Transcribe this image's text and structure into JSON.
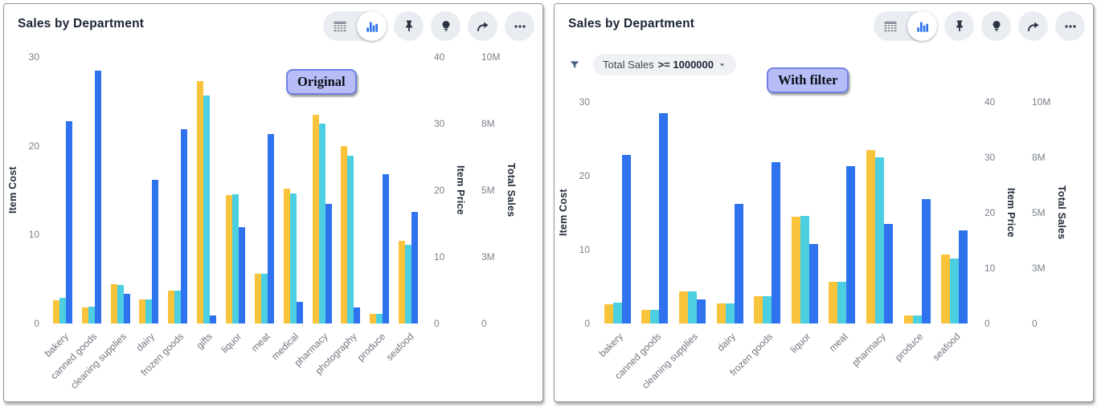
{
  "colors": {
    "bar_item_cost": "#F9C33C",
    "bar_item_price": "#4CCFE0",
    "bar_total_sales": "#2E72EE",
    "badge_bg": "#B7BEF7",
    "badge_border": "#7280E4",
    "toolbar_circle_bg": "#E9EDF2",
    "icon_dark": "#2B3442",
    "icon_gray": "#8D949F",
    "accent_blue": "#2E72EE"
  },
  "panels": [
    {
      "title": "Sales by Department",
      "annotation": "Original",
      "toolbar": {
        "icons": [
          "table-icon",
          "bar-chart-icon",
          "pin-icon",
          "lightbulb-icon",
          "share-arrow-icon",
          "more-options-icon"
        ],
        "active_view": "chart"
      }
    },
    {
      "title": "Sales by Department",
      "annotation": "With filter",
      "filter": {
        "icon": "filter-funnel-icon",
        "field": "Total Sales",
        "condition": ">= 1000000",
        "dropdown_icon": "caret-down-icon"
      },
      "toolbar": {
        "icons": [
          "table-icon",
          "bar-chart-icon",
          "pin-icon",
          "lightbulb-icon",
          "share-arrow-icon",
          "more-options-icon"
        ],
        "active_view": "chart"
      }
    }
  ],
  "chart_data": [
    {
      "type": "bar",
      "title": "Sales by Department",
      "annotation": "Original",
      "grid": false,
      "legend": "none",
      "categories": [
        "bakery",
        "canned goods",
        "cleaning supplies",
        "dairy",
        "frozen goods",
        "gifts",
        "liquor",
        "meat",
        "medical",
        "pharmacy",
        "photography",
        "produce",
        "seafood"
      ],
      "series": [
        {
          "name": "Item Cost",
          "axis": "left",
          "color": "#F9C33C",
          "axis_max": 30,
          "values": [
            2.6,
            1.8,
            4.4,
            2.7,
            3.7,
            27.3,
            14.5,
            5.6,
            15.2,
            23.5,
            20.0,
            1.1,
            9.3
          ]
        },
        {
          "name": "Item Price",
          "axis": "right-1",
          "color": "#4CCFE0",
          "axis_max": 40,
          "values": [
            3.8,
            2.5,
            5.8,
            3.6,
            4.9,
            34.2,
            19.4,
            7.5,
            19.5,
            30.0,
            25.2,
            1.4,
            11.8
          ]
        },
        {
          "name": "Total Sales",
          "axis": "right-2",
          "color": "#2E72EE",
          "axis_max": 10000000,
          "values": [
            7600000,
            9500000,
            1100000,
            5400000,
            7300000,
            300000,
            3600000,
            7100000,
            800000,
            4500000,
            600000,
            5600000,
            4200000
          ]
        }
      ],
      "axes": {
        "left": {
          "title": "Item Cost",
          "ticks": [
            "0",
            "10",
            "20",
            "30"
          ],
          "range": [
            0,
            30
          ]
        },
        "right1": {
          "title": "Item Price",
          "ticks": [
            "0",
            "10",
            "20",
            "30",
            "40"
          ],
          "range": [
            0,
            40
          ]
        },
        "right2": {
          "title": "Total Sales",
          "ticks": [
            "0",
            "3M",
            "5M",
            "8M",
            "10M"
          ],
          "range": [
            0,
            10000000
          ]
        }
      }
    },
    {
      "type": "bar",
      "title": "Sales by Department",
      "annotation": "With filter",
      "filter": "Total Sales >= 1000000",
      "grid": false,
      "legend": "none",
      "categories": [
        "bakery",
        "canned goods",
        "cleaning supplies",
        "dairy",
        "frozen goods",
        "liquor",
        "meat",
        "pharmacy",
        "produce",
        "seafood"
      ],
      "series": [
        {
          "name": "Item Cost",
          "axis": "left",
          "color": "#F9C33C",
          "axis_max": 30,
          "values": [
            2.6,
            1.8,
            4.4,
            2.7,
            3.7,
            14.5,
            5.6,
            23.5,
            1.1,
            9.3
          ]
        },
        {
          "name": "Item Price",
          "axis": "right-1",
          "color": "#4CCFE0",
          "axis_max": 40,
          "values": [
            3.8,
            2.5,
            5.8,
            3.6,
            4.9,
            19.4,
            7.5,
            30.0,
            1.4,
            11.8
          ]
        },
        {
          "name": "Total Sales",
          "axis": "right-2",
          "color": "#2E72EE",
          "axis_max": 10000000,
          "values": [
            7600000,
            9500000,
            1100000,
            5400000,
            7300000,
            3600000,
            7100000,
            4500000,
            5600000,
            4200000
          ]
        }
      ],
      "axes": {
        "left": {
          "title": "Item Cost",
          "ticks": [
            "0",
            "10",
            "20",
            "30"
          ],
          "range": [
            0,
            30
          ]
        },
        "right1": {
          "title": "Item Price",
          "ticks": [
            "0",
            "10",
            "20",
            "30",
            "40"
          ],
          "range": [
            0,
            40
          ]
        },
        "right2": {
          "title": "Total Sales",
          "ticks": [
            "0",
            "3M",
            "5M",
            "8M",
            "10M"
          ],
          "range": [
            0,
            10000000
          ]
        }
      }
    }
  ]
}
